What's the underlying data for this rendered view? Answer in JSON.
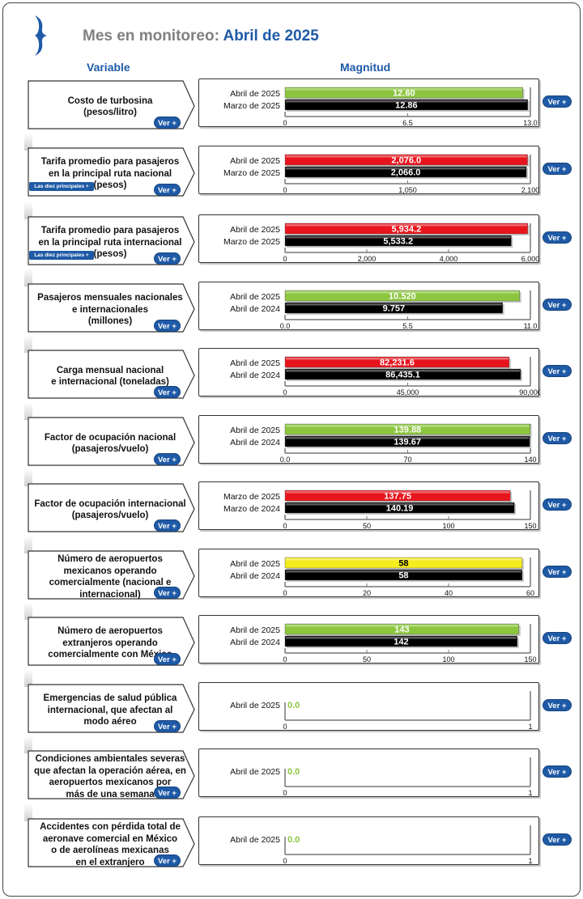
{
  "header": {
    "title_prefix": "Mes en monitoreo:",
    "title_value": "Abril de 2025",
    "col_variable": "Variable",
    "col_magnitud": "Magnitud"
  },
  "buttons": {
    "ver": "Ver +",
    "diez": "Las diez principales"
  },
  "colors": {
    "green": "#8cc63f",
    "red": "#e8141d",
    "yellow": "#f5ec1c",
    "black": "#000000",
    "accent": "#1f5aa6",
    "zero": "#8cc63f"
  },
  "chart_data": [
    {
      "type": "bar",
      "variable": [
        "Costo de turbosina",
        "(pesos/litro)"
      ],
      "diez": false,
      "categories": [
        "Abril de 2025",
        "Marzo de 2025"
      ],
      "values": [
        12.6,
        12.86
      ],
      "value_labels": [
        "12.60",
        "12.86"
      ],
      "colors": [
        "green",
        "black"
      ],
      "xlim": [
        0,
        13.0
      ],
      "ticks": [
        0,
        6.5,
        13.0
      ],
      "tick_labels": [
        "0",
        "6.5",
        "13.0"
      ]
    },
    {
      "type": "bar",
      "variable": [
        "Tarifa promedio para pasajeros",
        "en la principal ruta nacional",
        "(pesos)"
      ],
      "diez": true,
      "categories": [
        "Abril de 2025",
        "Marzo de 2025"
      ],
      "values": [
        2076.0,
        2066.0
      ],
      "value_labels": [
        "2,076.0",
        "2,066.0"
      ],
      "colors": [
        "red",
        "black"
      ],
      "xlim": [
        0,
        2100
      ],
      "ticks": [
        0,
        1050,
        2100
      ],
      "tick_labels": [
        "0",
        "1,050",
        "2,100"
      ]
    },
    {
      "type": "bar",
      "variable": [
        "Tarifa promedio para pasajeros",
        "en la principal ruta internacional",
        "(pesos)"
      ],
      "diez": true,
      "categories": [
        "Abril de 2025",
        "Marzo de 2025"
      ],
      "values": [
        5934.2,
        5533.2
      ],
      "value_labels": [
        "5,934.2",
        "5,533.2"
      ],
      "colors": [
        "red",
        "black"
      ],
      "xlim": [
        0,
        6000
      ],
      "ticks": [
        0,
        2000,
        4000,
        6000
      ],
      "tick_labels": [
        "0",
        "2,000",
        "4,000",
        "6,000"
      ]
    },
    {
      "type": "bar",
      "variable": [
        "Pasajeros mensuales nacionales",
        "e internacionales",
        "(millones)"
      ],
      "diez": false,
      "categories": [
        "Abril de 2025",
        "Abril de 2024"
      ],
      "values": [
        10.52,
        9.757
      ],
      "value_labels": [
        "10.520",
        "9.757"
      ],
      "colors": [
        "green",
        "black"
      ],
      "xlim": [
        0,
        11.0
      ],
      "ticks": [
        0,
        5.5,
        11.0
      ],
      "tick_labels": [
        "0.0",
        "5.5",
        "11.0"
      ]
    },
    {
      "type": "bar",
      "variable": [
        "Carga mensual nacional",
        "e internacional (toneladas)"
      ],
      "diez": false,
      "categories": [
        "Abril de 2025",
        "Abril de 2024"
      ],
      "values": [
        82231.6,
        86435.1
      ],
      "value_labels": [
        "82,231.6",
        "86,435.1"
      ],
      "colors": [
        "red",
        "black"
      ],
      "xlim": [
        0,
        90000
      ],
      "ticks": [
        0,
        45000,
        90000
      ],
      "tick_labels": [
        "0",
        "45,000",
        "90,000"
      ]
    },
    {
      "type": "bar",
      "variable": [
        "Factor de ocupación nacional",
        "(pasajeros/vuelo)"
      ],
      "diez": false,
      "categories": [
        "Abril de 2025",
        "Abril de 2024"
      ],
      "values": [
        139.88,
        139.67
      ],
      "value_labels": [
        "139.88",
        "139.67"
      ],
      "colors": [
        "green",
        "black"
      ],
      "xlim": [
        0,
        140
      ],
      "ticks": [
        0,
        70,
        140
      ],
      "tick_labels": [
        "0.0",
        "70",
        "140"
      ]
    },
    {
      "type": "bar",
      "variable": [
        "Factor de ocupación internacional",
        "(pasajeros/vuelo)"
      ],
      "diez": false,
      "categories": [
        "Marzo de 2025",
        "Marzo de 2024"
      ],
      "values": [
        137.75,
        140.19
      ],
      "value_labels": [
        "137.75",
        "140.19"
      ],
      "colors": [
        "red",
        "black"
      ],
      "xlim": [
        0,
        150
      ],
      "ticks": [
        0,
        50,
        100,
        150
      ],
      "tick_labels": [
        "0",
        "50",
        "100",
        "150"
      ]
    },
    {
      "type": "bar",
      "variable": [
        "Número de aeropuertos",
        "mexicanos  operando",
        "comercialmente  (nacional e",
        "internacional)"
      ],
      "diez": false,
      "categories": [
        "Abril de 2025",
        "Abril de 2024"
      ],
      "values": [
        58,
        58
      ],
      "value_labels": [
        "58",
        "58"
      ],
      "colors": [
        "yellow",
        "black"
      ],
      "xlim": [
        0,
        60
      ],
      "ticks": [
        0,
        20,
        40,
        60
      ],
      "tick_labels": [
        "0",
        "20",
        "40",
        "60"
      ]
    },
    {
      "type": "bar",
      "variable": [
        "Número de aeropuertos",
        "extranjeros  operando",
        "comercialmente con México"
      ],
      "diez": false,
      "categories": [
        "Abril de 2025",
        "Abril de 2024"
      ],
      "values": [
        143,
        142
      ],
      "value_labels": [
        "143",
        "142"
      ],
      "colors": [
        "green",
        "black"
      ],
      "xlim": [
        0,
        150
      ],
      "ticks": [
        0,
        50,
        100,
        150
      ],
      "tick_labels": [
        "0",
        "50",
        "100",
        "150"
      ]
    },
    {
      "type": "bar",
      "variable": [
        "Emergencias de salud pública",
        "internacional, que afectan al",
        "modo aéreo"
      ],
      "diez": false,
      "categories": [
        "Abril de 2025"
      ],
      "values": [
        0.0
      ],
      "value_labels": [
        "0.0"
      ],
      "colors": [
        "zero"
      ],
      "xlim": [
        0,
        1
      ],
      "ticks": [
        0,
        1
      ],
      "tick_labels": [
        "0",
        "1"
      ]
    },
    {
      "type": "bar",
      "variable": [
        "Condiciones ambientales severas",
        "que afectan la operación aérea, en",
        "aeropuertos mexicanos por",
        "más de una semana"
      ],
      "diez": false,
      "categories": [
        "Abril de 2025"
      ],
      "values": [
        0.0
      ],
      "value_labels": [
        "0.0"
      ],
      "colors": [
        "zero"
      ],
      "xlim": [
        0,
        1
      ],
      "ticks": [
        0,
        1
      ],
      "tick_labels": [
        "0",
        "1"
      ]
    },
    {
      "type": "bar",
      "variable": [
        "Accidentes con pérdida total de",
        "aeronave comercial en México",
        "o de aerolíneas mexicanas",
        "en el extranjero"
      ],
      "diez": false,
      "categories": [
        "Abril de 2025"
      ],
      "values": [
        0.0
      ],
      "value_labels": [
        "0.0"
      ],
      "colors": [
        "zero"
      ],
      "xlim": [
        0,
        1
      ],
      "ticks": [
        0,
        1
      ],
      "tick_labels": [
        "0",
        "1"
      ]
    }
  ]
}
